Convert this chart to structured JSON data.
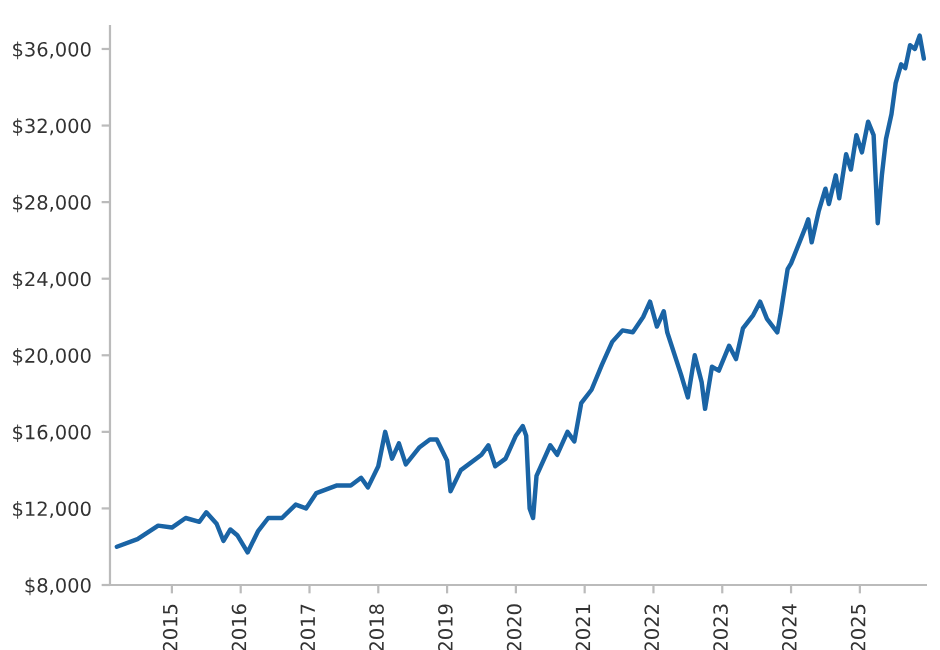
{
  "chart_data": {
    "type": "line",
    "xlim": [
      2014.1,
      2025.96
    ],
    "xticks": [
      2015,
      2016,
      2017,
      2018,
      2019,
      2020,
      2021,
      2022,
      2023,
      2024,
      2025
    ],
    "ylim": [
      8000,
      37200
    ],
    "yticks": [
      {
        "value": 8000,
        "label": "$8,000"
      },
      {
        "value": 12000,
        "label": "$12,000"
      },
      {
        "value": 16000,
        "label": "$16,000"
      },
      {
        "value": 20000,
        "label": "$20,000"
      },
      {
        "value": 24000,
        "label": "$24,000"
      },
      {
        "value": 28000,
        "label": "$28,000"
      },
      {
        "value": 32000,
        "label": "$32,000"
      },
      {
        "value": 36000,
        "label": "$36,000"
      }
    ],
    "grid": false,
    "legend": false,
    "marker": "none",
    "line_style": "solid",
    "series": [
      {
        "color": "#1a64a5",
        "x": [
          2014.2,
          2014.5,
          2014.8,
          2015.0,
          2015.2,
          2015.4,
          2015.5,
          2015.65,
          2015.75,
          2015.85,
          2015.95,
          2016.1,
          2016.25,
          2016.4,
          2016.6,
          2016.8,
          2016.95,
          2017.1,
          2017.4,
          2017.6,
          2017.75,
          2017.85,
          2018.0,
          2018.1,
          2018.2,
          2018.3,
          2018.4,
          2018.6,
          2018.75,
          2018.85,
          2019.0,
          2019.05,
          2019.2,
          2019.5,
          2019.6,
          2019.7,
          2019.85,
          2020.0,
          2020.1,
          2020.15,
          2020.2,
          2020.25,
          2020.3,
          2020.5,
          2020.6,
          2020.75,
          2020.85,
          2020.95,
          2021.1,
          2021.25,
          2021.4,
          2021.55,
          2021.7,
          2021.85,
          2021.95,
          2022.05,
          2022.15,
          2022.2,
          2022.4,
          2022.5,
          2022.6,
          2022.7,
          2022.75,
          2022.85,
          2022.95,
          2023.1,
          2023.2,
          2023.3,
          2023.45,
          2023.55,
          2023.65,
          2023.8,
          2023.85,
          2023.95,
          2024.0,
          2024.2,
          2024.25,
          2024.3,
          2024.4,
          2024.5,
          2024.55,
          2024.65,
          2024.7,
          2024.8,
          2024.87,
          2024.95,
          2025.03,
          2025.12,
          2025.2,
          2025.26,
          2025.32,
          2025.38,
          2025.46,
          2025.52,
          2025.6,
          2025.66,
          2025.73,
          2025.8,
          2025.87,
          2025.93
        ],
        "values": [
          10000,
          10400,
          11100,
          11000,
          11500,
          11300,
          11800,
          11200,
          10300,
          10900,
          10600,
          9700,
          10800,
          11500,
          11500,
          12200,
          12000,
          12800,
          13200,
          13200,
          13600,
          13100,
          14200,
          16000,
          14600,
          15400,
          14300,
          15200,
          15600,
          15600,
          14500,
          12900,
          14000,
          14800,
          15300,
          14200,
          14600,
          15800,
          16300,
          15800,
          12000,
          11500,
          13700,
          15300,
          14800,
          16000,
          15500,
          17500,
          18200,
          19500,
          20700,
          21300,
          21200,
          22000,
          22800,
          21500,
          22300,
          21200,
          19000,
          17800,
          20000,
          18600,
          17200,
          19400,
          19200,
          20500,
          19800,
          21400,
          22100,
          22800,
          21900,
          21200,
          22200,
          24500,
          24800,
          26600,
          27100,
          25900,
          27500,
          28700,
          27900,
          29400,
          28200,
          30500,
          29700,
          31500,
          30600,
          32200,
          31500,
          26900,
          29400,
          31300,
          32600,
          34200,
          35200,
          35000,
          36200,
          36000,
          36700,
          35500
        ]
      }
    ]
  }
}
